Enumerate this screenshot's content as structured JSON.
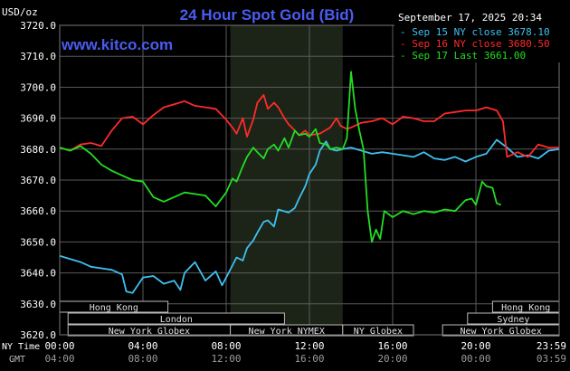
{
  "chart_data": {
    "type": "line",
    "title": "24 Hour Spot Gold (Bid)",
    "website": "www.kitco.com",
    "y_unit": "USD/oz",
    "datetime": "September 17, 2025 20:34",
    "ylim": [
      3620,
      3720
    ],
    "y_ticks": [
      "3720.0",
      "3710.0",
      "3700.0",
      "3690.0",
      "3680.0",
      "3670.0",
      "3660.0",
      "3650.0",
      "3640.0",
      "3630.0",
      "3620.0"
    ],
    "x_range_hours": [
      0,
      24
    ],
    "x_row_labels": {
      "ny": "NY Time",
      "gmt": "GMT"
    },
    "x_ticks_ny": [
      "00:00",
      "04:00",
      "08:00",
      "12:00",
      "16:00",
      "20:00",
      "23:59"
    ],
    "x_ticks_gmt": [
      "04:00",
      "08:00",
      "12:00",
      "16:00",
      "20:00",
      "00:00",
      "03:59"
    ],
    "grid": true,
    "legend_position": "top-right",
    "highlight_window_hours": [
      8.2,
      13.6
    ],
    "colors": {
      "background": "#000000",
      "grid": "#5a5a5a",
      "axis_text": "#ffffff",
      "title": "#4a5cf0",
      "website": "#4a5cf0",
      "highlight": "#1c2418",
      "market_bar_fill": "#000000",
      "market_bar_text": "#e0e0e0",
      "market_bar_border": "#bbbbbb"
    },
    "markets": [
      {
        "name": "Hong Kong",
        "start": 0,
        "end": 5.2
      },
      {
        "name": "Hong Kong",
        "start": 20.8,
        "end": 24
      },
      {
        "name": "London",
        "start": 0.4,
        "end": 10.8
      },
      {
        "name": "Sydney",
        "start": 19.6,
        "end": 24
      },
      {
        "name": "New York Globex",
        "start": 0.4,
        "end": 8.2
      },
      {
        "name": "New York NYMEX",
        "start": 8.2,
        "end": 13.6
      },
      {
        "name": "NY Globex",
        "start": 13.6,
        "end": 17.0
      },
      {
        "name": "New York Globex",
        "start": 18.4,
        "end": 24
      }
    ],
    "series": [
      {
        "name": "Sep 15 NY close 3678.10",
        "color": "#3ec0ef",
        "x": [
          0,
          0.5,
          1.0,
          1.5,
          2.0,
          2.5,
          3.0,
          3.2,
          3.5,
          4.0,
          4.5,
          5.0,
          5.5,
          5.8,
          6.0,
          6.5,
          7.0,
          7.5,
          7.8,
          8.0,
          8.5,
          8.8,
          9.0,
          9.3,
          9.5,
          9.8,
          10.0,
          10.3,
          10.5,
          11.0,
          11.3,
          11.5,
          11.8,
          12.0,
          12.3,
          12.5,
          12.8,
          13.0,
          13.3,
          13.6,
          14.0,
          14.5,
          15.0,
          15.5,
          16.0,
          16.5,
          17.0,
          17.5,
          18.0,
          18.5,
          19.0,
          19.5,
          20.0,
          20.5,
          21.0,
          21.5,
          22.0,
          22.5,
          23.0,
          23.5,
          23.99
        ],
        "y": [
          3645.5,
          3644.5,
          3643.5,
          3642.0,
          3641.5,
          3641.0,
          3639.5,
          3634.0,
          3633.5,
          3638.5,
          3639.0,
          3636.5,
          3637.5,
          3634.5,
          3640.0,
          3643.5,
          3637.5,
          3640.5,
          3636.0,
          3638.5,
          3645.0,
          3644.0,
          3648.0,
          3650.5,
          3653.0,
          3656.5,
          3657.0,
          3655.0,
          3660.5,
          3659.5,
          3661.0,
          3664.0,
          3668.0,
          3672.0,
          3675.0,
          3679.5,
          3682.5,
          3680.0,
          3679.5,
          3680.0,
          3680.5,
          3679.5,
          3678.5,
          3679.0,
          3678.5,
          3678.0,
          3677.5,
          3679.0,
          3677.0,
          3676.5,
          3677.5,
          3676.0,
          3677.5,
          3678.5,
          3683.0,
          3680.5,
          3677.5,
          3678.0,
          3677.0,
          3679.5,
          3680.0
        ]
      },
      {
        "name": "Sep 16 NY close 3680.50",
        "color": "#ff2a2a",
        "x": [
          0,
          0.5,
          1.0,
          1.5,
          2.0,
          2.5,
          3.0,
          3.5,
          4.0,
          4.5,
          5.0,
          5.5,
          6.0,
          6.5,
          7.0,
          7.5,
          8.0,
          8.3,
          8.5,
          8.8,
          9.0,
          9.3,
          9.5,
          9.8,
          10.0,
          10.3,
          10.5,
          10.8,
          11.0,
          11.3,
          11.5,
          11.8,
          12.0,
          12.5,
          13.0,
          13.3,
          13.5,
          13.8,
          14.0,
          14.5,
          15.0,
          15.5,
          16.0,
          16.5,
          17.0,
          17.5,
          18.0,
          18.5,
          19.0,
          19.5,
          20.0,
          20.5,
          21.0,
          21.3,
          21.5,
          22.0,
          22.5,
          23.0,
          23.5,
          23.99
        ],
        "y": [
          3680.5,
          3679.5,
          3681.5,
          3682.0,
          3681.0,
          3686.0,
          3690.0,
          3690.5,
          3688.0,
          3691.0,
          3693.5,
          3694.5,
          3695.5,
          3694.0,
          3693.5,
          3693.0,
          3689.5,
          3687.0,
          3685.0,
          3690.0,
          3684.0,
          3689.5,
          3695.0,
          3697.5,
          3693.0,
          3695.0,
          3693.5,
          3690.0,
          3688.0,
          3686.0,
          3684.5,
          3686.0,
          3684.5,
          3685.0,
          3687.0,
          3690.0,
          3687.5,
          3686.5,
          3687.0,
          3688.5,
          3689.0,
          3690.0,
          3688.0,
          3690.5,
          3690.0,
          3689.0,
          3689.0,
          3691.5,
          3692.0,
          3692.5,
          3692.5,
          3693.5,
          3692.5,
          3689.0,
          3677.5,
          3679.0,
          3677.5,
          3681.5,
          3680.5,
          3680.5
        ]
      },
      {
        "name": "Sep 17 Last 3661.00",
        "color": "#22dd22",
        "x": [
          0,
          0.5,
          1.0,
          1.5,
          2.0,
          2.5,
          3.0,
          3.5,
          4.0,
          4.5,
          5.0,
          5.5,
          6.0,
          6.5,
          7.0,
          7.5,
          8.0,
          8.3,
          8.5,
          8.8,
          9.0,
          9.3,
          9.5,
          9.8,
          10.0,
          10.3,
          10.5,
          10.8,
          11.0,
          11.3,
          11.5,
          11.8,
          12.0,
          12.3,
          12.5,
          12.8,
          13.0,
          13.3,
          13.6,
          13.8,
          14.0,
          14.2,
          14.4,
          14.6,
          14.8,
          15.0,
          15.2,
          15.4,
          15.6,
          16.0,
          16.5,
          17.0,
          17.5,
          18.0,
          18.5,
          19.0,
          19.5,
          19.8,
          20.0,
          20.3,
          20.5,
          20.8,
          21.0,
          21.2
        ],
        "y": [
          3680.5,
          3679.5,
          3681.0,
          3678.5,
          3675.0,
          3673.0,
          3671.5,
          3670.0,
          3669.5,
          3664.5,
          3663.0,
          3664.5,
          3666.0,
          3665.5,
          3665.0,
          3661.5,
          3666.0,
          3670.5,
          3669.5,
          3674.5,
          3677.5,
          3680.5,
          3679.0,
          3677.0,
          3680.0,
          3681.5,
          3679.5,
          3683.5,
          3680.5,
          3686.0,
          3684.5,
          3685.0,
          3684.0,
          3686.5,
          3682.0,
          3681.5,
          3680.0,
          3680.5,
          3680.0,
          3683.5,
          3705.0,
          3693.0,
          3686.0,
          3680.0,
          3660.0,
          3650.0,
          3654.0,
          3651.0,
          3660.0,
          3658.0,
          3660.0,
          3659.0,
          3660.0,
          3659.5,
          3660.5,
          3660.0,
          3663.5,
          3664.0,
          3662.0,
          3669.5,
          3668.0,
          3667.5,
          3662.5,
          3662.0
        ]
      }
    ]
  }
}
